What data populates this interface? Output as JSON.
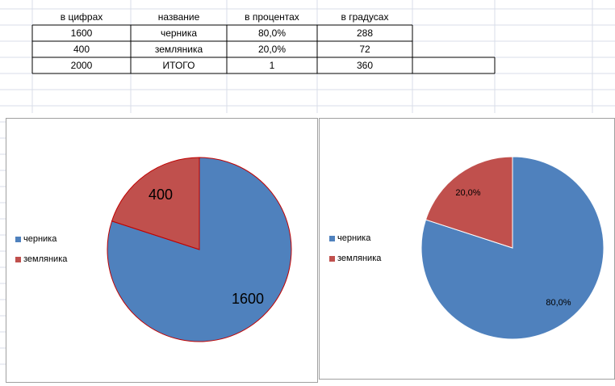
{
  "table": {
    "headers": [
      "в цифрах",
      "название",
      "в процентах",
      "в градусах"
    ],
    "rows": [
      [
        "1600",
        "черника",
        "80,0%",
        "288"
      ],
      [
        "400",
        "земляника",
        "20,0%",
        "72"
      ],
      [
        "2000",
        "ИТОГО",
        "1",
        "360"
      ]
    ]
  },
  "colors": {
    "blue": "#4f81bd",
    "red": "#c0504d",
    "chart_border": "#a0a0a0",
    "gridline": "#d9dee8"
  },
  "chart_data": [
    {
      "type": "pie",
      "categories": [
        "черника",
        "земляника"
      ],
      "values": [
        1600,
        400
      ],
      "data_labels": [
        "1600",
        "400"
      ],
      "legend": [
        "черника",
        "земляника"
      ],
      "legend_position": "left",
      "title": ""
    },
    {
      "type": "pie",
      "categories": [
        "черника",
        "земляника"
      ],
      "values": [
        80.0,
        20.0
      ],
      "data_labels": [
        "80,0%",
        "20,0%"
      ],
      "legend": [
        "черника",
        "земляника"
      ],
      "legend_position": "left",
      "title": ""
    }
  ]
}
